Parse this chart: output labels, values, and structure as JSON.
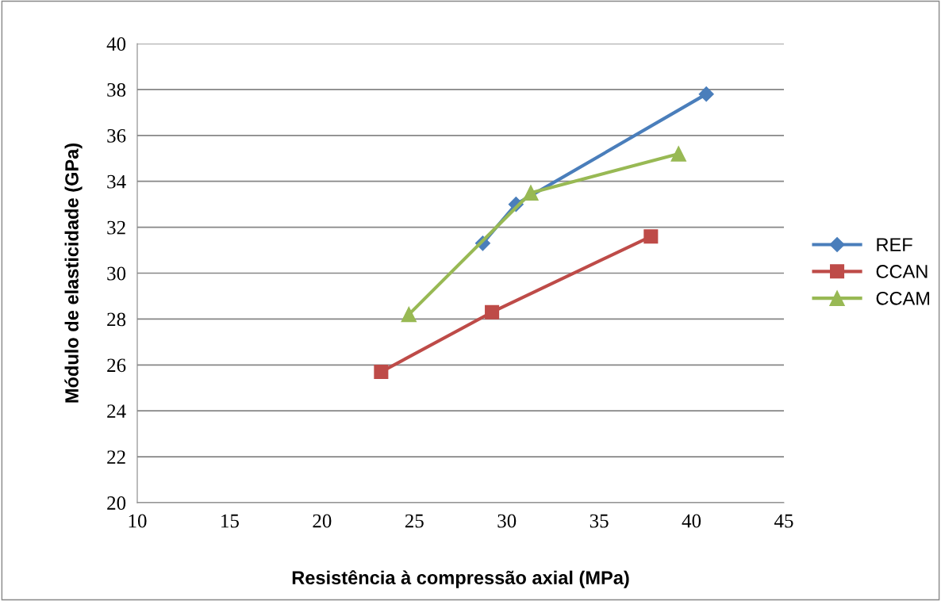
{
  "chart_data": {
    "type": "line",
    "xlabel": "Resistência à compressão axial (MPa)",
    "ylabel": "Módulo de elasticidade (GPa)",
    "xlim": [
      10,
      45
    ],
    "xticks": [
      10,
      15,
      20,
      25,
      30,
      35,
      40,
      45
    ],
    "ylim": [
      20,
      40
    ],
    "yticks": [
      20,
      22,
      24,
      26,
      28,
      30,
      32,
      34,
      36,
      38,
      40
    ],
    "grid": "y",
    "legend": "right",
    "line_style": "solid",
    "series": [
      {
        "name": "REF",
        "color": "#4a7ebb",
        "marker": "diamond",
        "x": [
          28.7,
          30.5,
          40.8
        ],
        "values": [
          31.3,
          33.0,
          37.8
        ]
      },
      {
        "name": "CCAN",
        "color": "#be4b48",
        "marker": "square",
        "x": [
          23.2,
          29.2,
          37.8
        ],
        "values": [
          25.7,
          28.3,
          31.6
        ]
      },
      {
        "name": "CCAM",
        "color": "#98b954",
        "marker": "triangle",
        "x": [
          24.7,
          31.3,
          39.3
        ],
        "values": [
          28.2,
          33.5,
          35.2
        ]
      }
    ]
  }
}
